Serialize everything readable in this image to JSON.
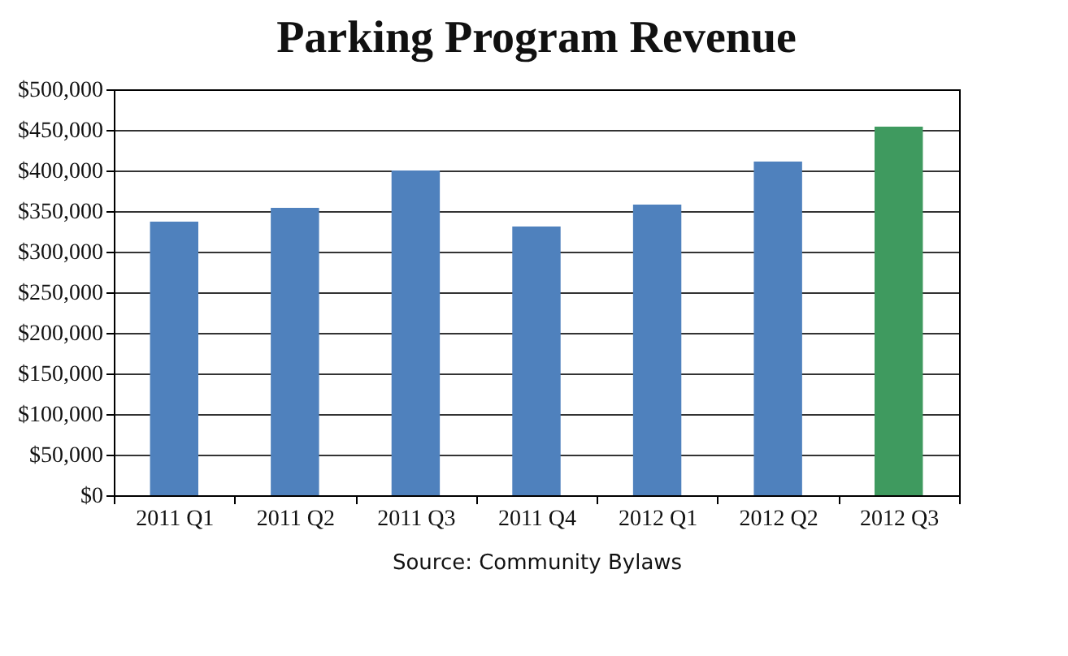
{
  "chart_data": {
    "type": "bar",
    "title": "Parking Program Revenue",
    "categories": [
      "2011 Q1",
      "2011 Q2",
      "2011 Q3",
      "2011 Q4",
      "2012 Q1",
      "2012 Q2",
      "2012 Q3"
    ],
    "values": [
      337000,
      354000,
      400000,
      331000,
      358000,
      411000,
      454000
    ],
    "colors": [
      "#4f81bd",
      "#4f81bd",
      "#4f81bd",
      "#4f81bd",
      "#4f81bd",
      "#4f81bd",
      "#3f9a5f"
    ],
    "ylim": [
      0,
      500000
    ],
    "yticks": [
      {
        "value": 0,
        "label": "$0"
      },
      {
        "value": 50000,
        "label": "$50,000"
      },
      {
        "value": 100000,
        "label": "$100,000"
      },
      {
        "value": 150000,
        "label": "$150,000"
      },
      {
        "value": 200000,
        "label": "$200,000"
      },
      {
        "value": 250000,
        "label": "$250,000"
      },
      {
        "value": 300000,
        "label": "$300,000"
      },
      {
        "value": 350000,
        "label": "$350,000"
      },
      {
        "value": 400000,
        "label": "$400,000"
      },
      {
        "value": 450000,
        "label": "$450,000"
      },
      {
        "value": 500000,
        "label": "$500,000"
      }
    ],
    "grid": "y",
    "annotations": [
      "Source: Community Bylaws"
    ]
  }
}
